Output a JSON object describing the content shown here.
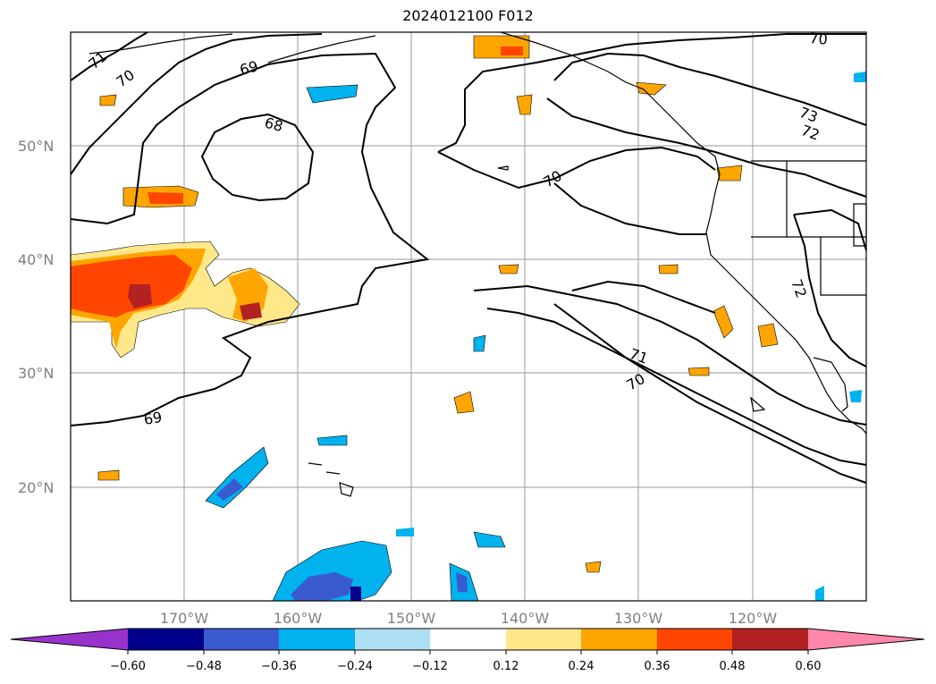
{
  "title": "2024012100 F012",
  "map": {
    "lat_labels": [
      "50°N",
      "40°N",
      "30°N",
      "20°N"
    ],
    "lon_labels": [
      "170°W",
      "160°W",
      "150°W",
      "140°W",
      "130°W",
      "120°W"
    ],
    "contour_labels": [
      "71",
      "70",
      "69",
      "68",
      "70",
      "70",
      "73",
      "72",
      "72",
      "71",
      "70",
      "69"
    ]
  },
  "colorbar": {
    "ticks": [
      "−0.60",
      "−0.48",
      "−0.36",
      "−0.24",
      "−0.12",
      "0.12",
      "0.24",
      "0.36",
      "0.48",
      "0.60"
    ],
    "colors": [
      "#9932CC",
      "#00008B",
      "#3A5BD0",
      "#00B2EE",
      "#ADDFF5",
      "#FFFFFF",
      "#FFE88A",
      "#FFA500",
      "#FF4500",
      "#B22222",
      "#FF88AA"
    ]
  }
}
